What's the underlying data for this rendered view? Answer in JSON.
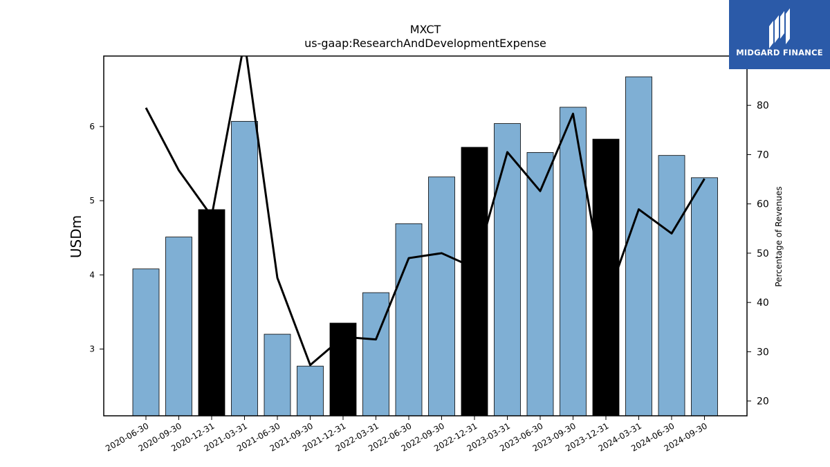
{
  "chart_data": {
    "type": "bar",
    "title": "MXCT",
    "subtitle": "us-gaap:ResearchAndDevelopmentExpense",
    "ylabel": "USDm",
    "y2label": "Percentage of Revenues",
    "ylim": [
      2.1,
      6.95
    ],
    "y2lim": [
      17,
      90
    ],
    "yticks": [
      3,
      4,
      5,
      6
    ],
    "y2ticks": [
      20,
      30,
      40,
      50,
      60,
      70,
      80
    ],
    "categories": [
      "2020-06-30",
      "2020-09-30",
      "2020-12-31",
      "2021-03-31",
      "2021-06-30",
      "2021-09-30",
      "2021-12-31",
      "2022-03-31",
      "2022-06-30",
      "2022-09-30",
      "2022-12-31",
      "2023-03-31",
      "2023-06-30",
      "2023-09-30",
      "2023-12-31",
      "2024-03-31",
      "2024-06-30",
      "2024-09-30"
    ],
    "series": [
      {
        "type": "bar",
        "axis": "left",
        "values": [
          4.08,
          4.51,
          4.88,
          6.07,
          3.2,
          2.77,
          3.35,
          3.76,
          4.69,
          5.32,
          5.72,
          6.04,
          5.65,
          6.26,
          5.83,
          6.67,
          5.61,
          5.31
        ],
        "highlight": [
          false,
          false,
          true,
          false,
          false,
          false,
          true,
          false,
          false,
          false,
          true,
          false,
          false,
          false,
          true,
          false,
          false,
          false
        ]
      },
      {
        "type": "line",
        "axis": "right",
        "values": [
          79.5,
          66.8,
          57.5,
          93.0,
          45.0,
          27.3,
          33.0,
          32.5,
          49.0,
          50.0,
          47.0,
          70.5,
          62.6,
          78.3,
          40.0,
          58.9,
          54.0,
          65.1
        ]
      }
    ],
    "colors": {
      "bar": "#7fafd4",
      "highlight": "#000000",
      "line": "#000000"
    },
    "grid": false
  },
  "branding": {
    "logo_text": "MIDGARD FINANCE"
  }
}
